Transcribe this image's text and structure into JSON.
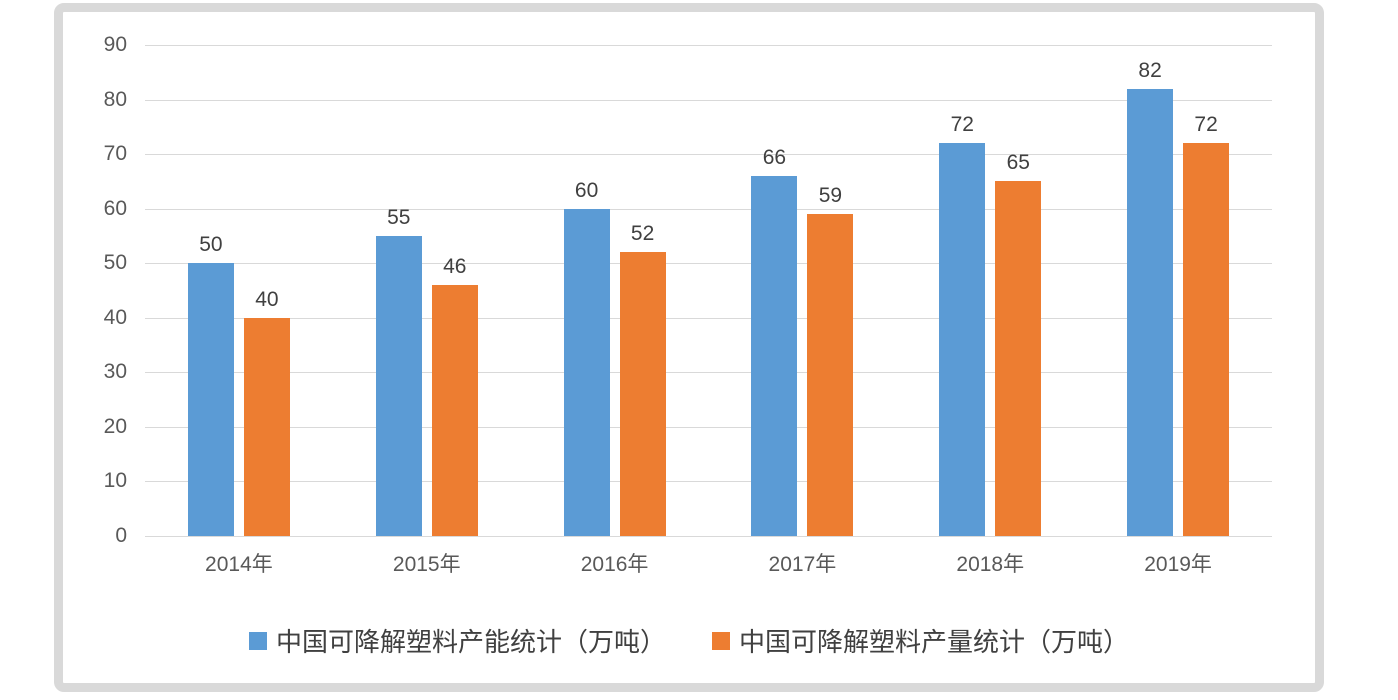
{
  "chart_data": {
    "type": "bar",
    "title": "",
    "xlabel": "",
    "ylabel": "",
    "categories": [
      "2014年",
      "2015年",
      "2016年",
      "2017年",
      "2018年",
      "2019年"
    ],
    "series": [
      {
        "name": "中国可降解塑料产能统计（万吨）",
        "color": "#5B9BD5",
        "values": [
          50,
          55,
          60,
          66,
          72,
          82
        ]
      },
      {
        "name": "中国可降解塑料产量统计（万吨）",
        "color": "#ED7D31",
        "values": [
          40,
          46,
          52,
          59,
          65,
          72
        ]
      }
    ],
    "ylim": [
      0,
      90
    ],
    "yticks": [
      0,
      10,
      20,
      30,
      40,
      50,
      60,
      70,
      80,
      90
    ],
    "grid": true,
    "data_labels": true,
    "legend_position": "bottom"
  },
  "colors": {
    "grid": "#D9D9D9",
    "axis_text": "#595959",
    "data_label": "#404040",
    "frame_border": "#D9D9D9",
    "background": "#FFFFFF"
  }
}
